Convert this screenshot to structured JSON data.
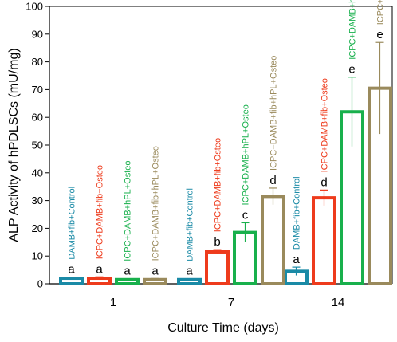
{
  "chart_data": {
    "type": "bar",
    "xlabel": "Culture Time (days)",
    "ylabel": "ALP Activity of hPDLSCs (mU/mg)",
    "ylim": [
      0,
      100
    ],
    "yticks": [
      0,
      10,
      20,
      30,
      40,
      50,
      60,
      70,
      80,
      90,
      100
    ],
    "categories": [
      "1",
      "7",
      "14"
    ],
    "grid": false,
    "bar_fill": "#ffffff",
    "series": [
      {
        "name": "DAMB+fib+Control",
        "color": "#1a8aa6",
        "values": [
          2.0,
          1.5,
          4.5
        ],
        "errors": [
          0.4,
          0.3,
          1.5
        ],
        "sig": [
          "a",
          "a",
          "a"
        ]
      },
      {
        "name": "ICPC+DAMB+fib+Osteo",
        "color": "#ee3b1c",
        "values": [
          2.0,
          11.5,
          31.0
        ],
        "errors": [
          0.5,
          0.8,
          2.8
        ],
        "sig": [
          "a",
          "b",
          "d"
        ]
      },
      {
        "name": "ICPC+DAMB+hPL+Osteo",
        "color": "#18b04c",
        "values": [
          1.5,
          18.5,
          62.0
        ],
        "errors": [
          0.3,
          3.5,
          12.5
        ],
        "sig": [
          "a",
          "c",
          "e"
        ]
      },
      {
        "name": "ICPC+DAMB+fib+hPL+Osteo",
        "color": "#9a8a5c",
        "values": [
          1.5,
          31.5,
          70.5
        ],
        "errors": [
          0.4,
          3.0,
          16.5
        ],
        "sig": [
          "a",
          "d",
          "e"
        ]
      }
    ]
  }
}
